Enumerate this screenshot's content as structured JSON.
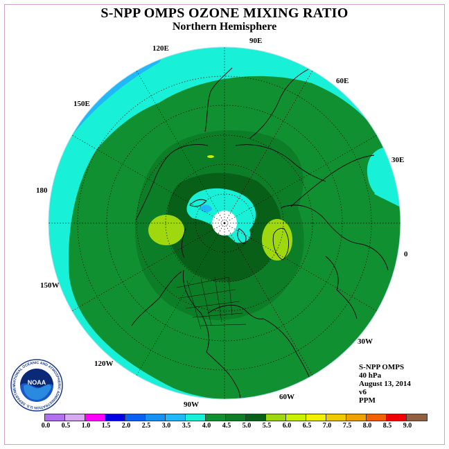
{
  "title": "S-NPP OMPS OZONE MIXING RATIO",
  "subtitle": "Northern Hemisphere",
  "longitude_labels": [
    "90E",
    "60E",
    "30E",
    "0",
    "30W",
    "60W",
    "90W",
    "120W",
    "150W",
    "180",
    "150E",
    "120E"
  ],
  "info": {
    "instrument": "S-NPP OMPS",
    "level": "40 hPa",
    "date": "August 13, 2014",
    "version": "v6",
    "units": "PPM"
  },
  "logo": {
    "text": "NOAA",
    "ring_text": "NATIONAL OCEANIC AND ATMOSPHERIC ADMINISTRATION U.S. DEPARTMENT OF COMMERCE"
  },
  "colorbar": {
    "tick_labels": [
      "0.0",
      "0.5",
      "1.0",
      "1.5",
      "2.0",
      "2.5",
      "3.0",
      "3.5",
      "4.0",
      "4.5",
      "5.0",
      "5.5",
      "6.0",
      "6.5",
      "7.0",
      "7.5",
      "8.0",
      "8.5",
      "9.0"
    ],
    "colors": [
      "#b070f0",
      "#d8a8f0",
      "#ff00ff",
      "#0000e0",
      "#0a60f0",
      "#1890f0",
      "#20b8f8",
      "#18f0d8",
      "#109030",
      "#0c7e28",
      "#086018",
      "#a0d810",
      "#c8f000",
      "#f0f000",
      "#f0c800",
      "#f0a000",
      "#f06000",
      "#f00000",
      "#906040"
    ]
  },
  "map_colors": {
    "ocean_bg": "#18f0d8",
    "level_45": "#109030",
    "level_50": "#0c7e28",
    "level_55": "#086018",
    "level_60": "#a0d810",
    "level_30": "#20b8f8",
    "pole_gap": "#ffffff"
  }
}
